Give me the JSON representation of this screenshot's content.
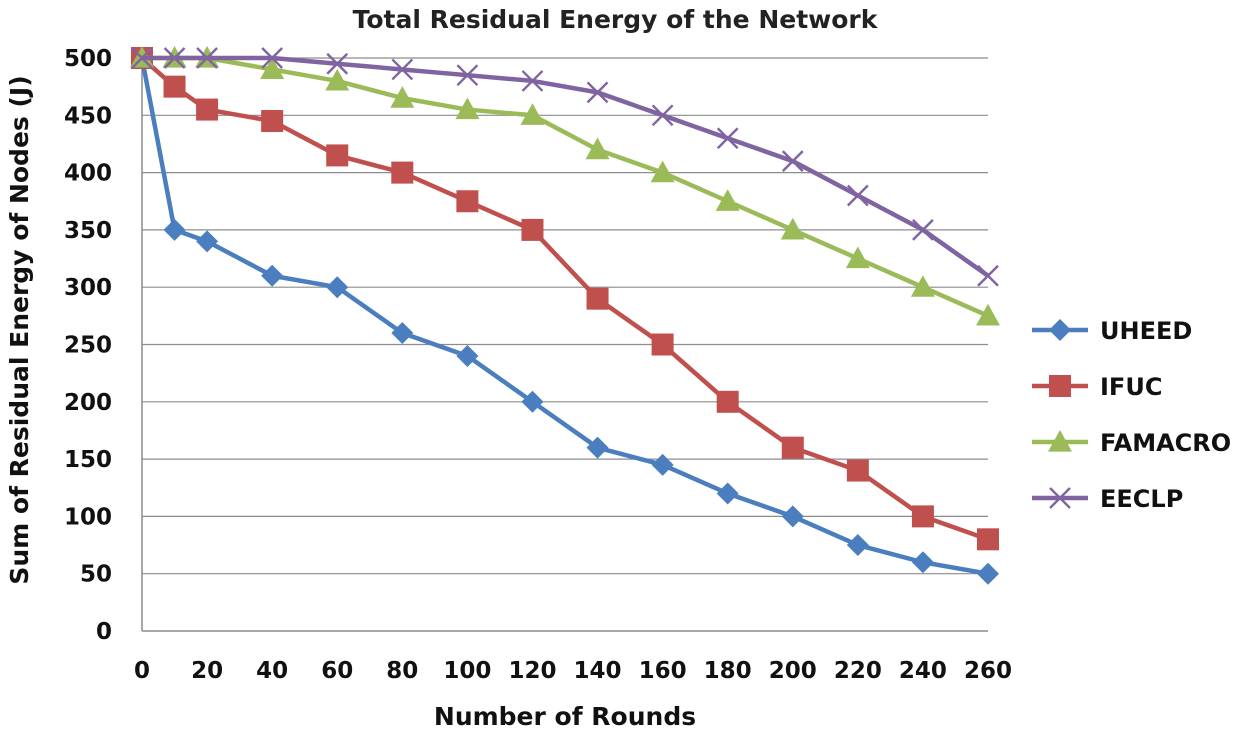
{
  "chart_data": {
    "type": "line",
    "title": "Total Residual Energy of the Network",
    "xlabel": "Number of Rounds",
    "ylabel": "Sum of Residual Energy of Nodes (J)",
    "x": [
      0,
      10,
      20,
      40,
      60,
      80,
      100,
      120,
      140,
      160,
      180,
      200,
      220,
      240,
      260
    ],
    "x_tick_labels": [
      "0",
      "20",
      "40",
      "60",
      "80",
      "100",
      "120",
      "140",
      "160",
      "180",
      "200",
      "220",
      "240",
      "260"
    ],
    "y_ticks": [
      0,
      50,
      100,
      150,
      200,
      250,
      300,
      350,
      400,
      450,
      500
    ],
    "ylim": [
      0,
      500
    ],
    "grid": "horizontal",
    "legend_position": "right",
    "series": [
      {
        "name": "UHEED",
        "color": "#4a7ebf",
        "marker": "diamond",
        "values": [
          500,
          350,
          340,
          310,
          300,
          260,
          240,
          200,
          160,
          145,
          120,
          100,
          75,
          60,
          50
        ]
      },
      {
        "name": "IFUC",
        "color": "#c0504d",
        "marker": "square",
        "values": [
          500,
          475,
          455,
          445,
          415,
          400,
          375,
          350,
          290,
          250,
          200,
          160,
          140,
          100,
          80
        ]
      },
      {
        "name": "FAMACRO",
        "color": "#9bbb59",
        "marker": "triangle",
        "values": [
          500,
          500,
          500,
          490,
          480,
          465,
          455,
          450,
          420,
          400,
          375,
          350,
          325,
          300,
          275
        ]
      },
      {
        "name": "EECLP",
        "color": "#8064a2",
        "marker": "x",
        "values": [
          500,
          500,
          500,
          500,
          495,
          490,
          485,
          480,
          470,
          450,
          430,
          410,
          380,
          350,
          310
        ]
      }
    ]
  }
}
